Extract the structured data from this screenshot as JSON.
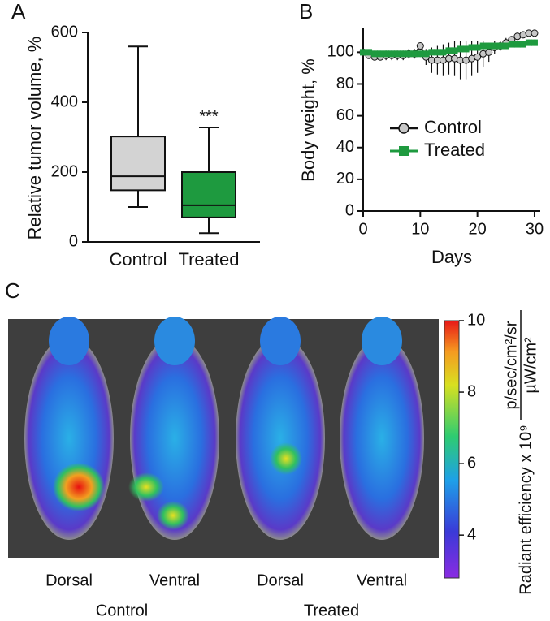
{
  "chart_data": [
    {
      "type": "box",
      "panel_label": "A",
      "ylabel": "Relative tumor volume, %",
      "categories": [
        "Control",
        "Treated"
      ],
      "colors": [
        "#d3d3d3",
        "#1e9a3f"
      ],
      "boxes": [
        {
          "min": 100,
          "q1": 148,
          "median": 188,
          "q3": 302,
          "max": 560
        },
        {
          "min": 25,
          "q1": 70,
          "median": 105,
          "q3": 200,
          "max": 328
        }
      ],
      "annotation": "***",
      "ylim": [
        0,
        600
      ],
      "yticks": [
        0,
        200,
        400,
        600
      ]
    },
    {
      "type": "line",
      "panel_label": "B",
      "xlabel": "Days",
      "ylabel": "Body weight, %",
      "x": [
        0,
        1,
        2,
        3,
        4,
        5,
        6,
        7,
        8,
        9,
        10,
        11,
        12,
        13,
        14,
        15,
        16,
        17,
        18,
        19,
        20,
        21,
        22,
        23,
        24,
        25,
        26,
        27,
        28,
        29,
        30
      ],
      "series": [
        {
          "name": "Control",
          "color": "#c8c8c8",
          "marker": "circle",
          "values": [
            100,
            98,
            97,
            97,
            98,
            98,
            98,
            98,
            99,
            99,
            104,
            97,
            95,
            95,
            95,
            96,
            96,
            95,
            95,
            96,
            97,
            99,
            100,
            103,
            104,
            106,
            108,
            110,
            111,
            112,
            112
          ],
          "errors": [
            2,
            2,
            2,
            2,
            3,
            3,
            3,
            3,
            3,
            3,
            2,
            5,
            8,
            9,
            10,
            10,
            11,
            12,
            12,
            11,
            10,
            8,
            6,
            4,
            3,
            3,
            2,
            2,
            2,
            2,
            2
          ]
        },
        {
          "name": "Treated",
          "color": "#1e9a3f",
          "marker": "square",
          "values": [
            100,
            100,
            99,
            99,
            99,
            99,
            99,
            99,
            99,
            99,
            99,
            99,
            100,
            100,
            100,
            101,
            101,
            102,
            102,
            103,
            103,
            104,
            104,
            104,
            104,
            104,
            105,
            105,
            105,
            106,
            106
          ],
          "errors": [
            2,
            2,
            2,
            2,
            2,
            2,
            2,
            2,
            2,
            2,
            2,
            2,
            2,
            2,
            2,
            2,
            2,
            2,
            2,
            2,
            2,
            2,
            2,
            2,
            2,
            2,
            2,
            2,
            2,
            2,
            2
          ]
        }
      ],
      "xlim": [
        0,
        31
      ],
      "ylim": [
        0,
        115
      ],
      "xticks": [
        0,
        10,
        20,
        30
      ],
      "yticks": [
        0,
        20,
        40,
        60,
        80,
        100
      ],
      "legend": "center"
    },
    {
      "type": "image",
      "panel_label": "C",
      "views": [
        "Dorsal",
        "Ventral",
        "Dorsal",
        "Ventral"
      ],
      "groups": [
        "Control",
        "Treated"
      ],
      "colorbar": {
        "label": "Radiant efficiency x 10⁹",
        "units_top": "p/sec/cm²/sr",
        "units_bottom": "µW/cm²",
        "lim": [
          2.8,
          10
        ],
        "ticks": [
          4,
          6,
          8,
          10
        ]
      }
    }
  ]
}
